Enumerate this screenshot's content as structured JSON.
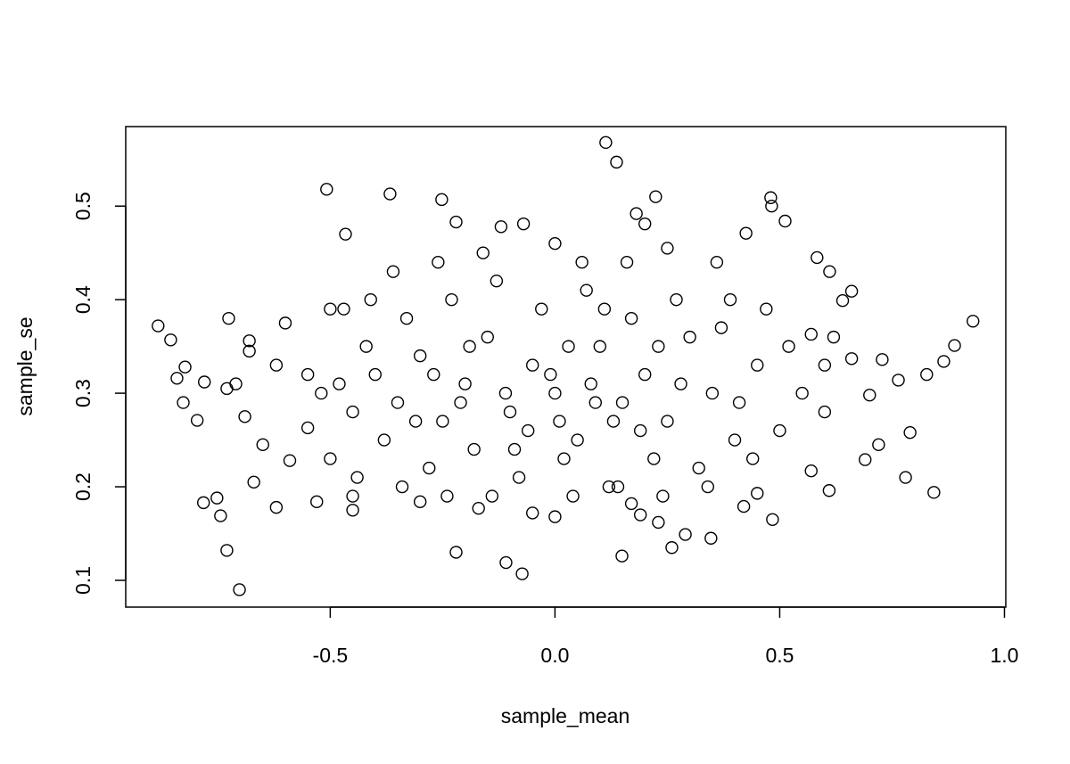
{
  "chart_data": {
    "type": "scatter",
    "x_label": "sample_mean",
    "y_label": "sample_se",
    "x": [
      -0.883,
      -0.855,
      -0.702,
      0.113,
      0.137,
      -0.508,
      -0.367,
      0.93,
      0.889,
      0.843,
      -0.073,
      -0.109,
      -0.22,
      0.149,
      -0.73,
      -0.744,
      -0.752,
      -0.782,
      -0.796,
      -0.841,
      -0.823,
      -0.827,
      -0.78,
      -0.726,
      0.48,
      0.482,
      0.512,
      0.425,
      0.224,
      0.181,
      -0.466,
      -0.252,
      0.865,
      0.827,
      0.764,
      0.728,
      0.583,
      0.611,
      0.484,
      0.29,
      0.347,
      -0.69,
      -0.68,
      -0.68,
      -0.73,
      -0.71,
      -0.65,
      -0.67,
      -0.62,
      -0.62,
      -0.6,
      -0.59,
      -0.55,
      -0.53,
      -0.5,
      -0.5,
      -0.47,
      -0.45,
      -0.45,
      0.7,
      0.69,
      0.66,
      0.66,
      0.64,
      0.62,
      0.61,
      0.57,
      0.57,
      0.78,
      0.79,
      0.72,
      0.17,
      0.19,
      -0.05,
      0.0,
      0.23,
      0.26,
      0.42,
      0.45,
      -0.3,
      -0.17,
      -0.22,
      -0.07,
      0.0,
      -0.12,
      0.2,
      0.25,
      -0.4,
      -0.35,
      -0.3,
      -0.25,
      -0.2,
      -0.15,
      -0.1,
      -0.05,
      0.0,
      0.05,
      0.1,
      0.15,
      0.2,
      0.25,
      0.3,
      0.35,
      0.4,
      0.45,
      -0.38,
      -0.33,
      -0.28,
      -0.23,
      -0.18,
      -0.13,
      -0.08,
      -0.03,
      0.02,
      0.07,
      0.12,
      0.17,
      0.22,
      0.27,
      0.32,
      0.37,
      -0.42,
      -0.45,
      -0.48,
      -0.52,
      -0.55,
      0.5,
      0.52,
      0.55,
      0.6,
      0.6,
      -0.36,
      -0.26,
      -0.16,
      0.06,
      0.16,
      0.36,
      -0.34,
      -0.24,
      -0.14,
      0.04,
      0.14,
      0.24,
      0.34,
      -0.11,
      0.08,
      0.13,
      -0.06,
      0.03,
      -0.21,
      0.28,
      0.19,
      -0.31,
      0.41,
      -0.44,
      0.44,
      0.47,
      -0.41,
      0.39,
      0.11,
      -0.19,
      0.01,
      -0.01,
      0.09,
      -0.09,
      0.23,
      -0.27
    ],
    "y": [
      0.372,
      0.357,
      0.09,
      0.568,
      0.547,
      0.518,
      0.513,
      0.377,
      0.351,
      0.194,
      0.107,
      0.119,
      0.13,
      0.126,
      0.132,
      0.169,
      0.188,
      0.183,
      0.271,
      0.316,
      0.328,
      0.29,
      0.312,
      0.38,
      0.509,
      0.5,
      0.484,
      0.471,
      0.51,
      0.492,
      0.47,
      0.507,
      0.334,
      0.32,
      0.314,
      0.336,
      0.445,
      0.43,
      0.165,
      0.149,
      0.145,
      0.275,
      0.345,
      0.356,
      0.305,
      0.31,
      0.245,
      0.205,
      0.178,
      0.33,
      0.375,
      0.228,
      0.263,
      0.184,
      0.23,
      0.39,
      0.39,
      0.175,
      0.19,
      0.298,
      0.229,
      0.409,
      0.337,
      0.399,
      0.36,
      0.196,
      0.363,
      0.217,
      0.21,
      0.258,
      0.245,
      0.182,
      0.17,
      0.172,
      0.168,
      0.162,
      0.135,
      0.179,
      0.193,
      0.184,
      0.177,
      0.483,
      0.481,
      0.46,
      0.478,
      0.481,
      0.455,
      0.32,
      0.29,
      0.34,
      0.27,
      0.31,
      0.36,
      0.28,
      0.33,
      0.3,
      0.25,
      0.35,
      0.29,
      0.32,
      0.27,
      0.36,
      0.3,
      0.25,
      0.33,
      0.25,
      0.38,
      0.22,
      0.4,
      0.24,
      0.42,
      0.21,
      0.39,
      0.23,
      0.41,
      0.2,
      0.38,
      0.23,
      0.4,
      0.22,
      0.37,
      0.35,
      0.28,
      0.31,
      0.3,
      0.32,
      0.26,
      0.35,
      0.3,
      0.28,
      0.33,
      0.43,
      0.44,
      0.45,
      0.44,
      0.44,
      0.44,
      0.2,
      0.19,
      0.19,
      0.19,
      0.2,
      0.19,
      0.2,
      0.3,
      0.31,
      0.27,
      0.26,
      0.35,
      0.29,
      0.31,
      0.26,
      0.27,
      0.29,
      0.21,
      0.23,
      0.39,
      0.4,
      0.4,
      0.39,
      0.35,
      0.27,
      0.32,
      0.29,
      0.24,
      0.35,
      0.32
    ],
    "xlim": [
      -0.955,
      1.003
    ],
    "ylim": [
      0.0714,
      0.585
    ],
    "xticks": [
      -0.5,
      {
        "value": 0,
        "label": "0.0"
      },
      0.5,
      {
        "value": 1,
        "label": "1.0"
      }
    ],
    "yticks": [
      0.1,
      0.2,
      0.3,
      0.4,
      0.5
    ],
    "color": "#000000"
  }
}
